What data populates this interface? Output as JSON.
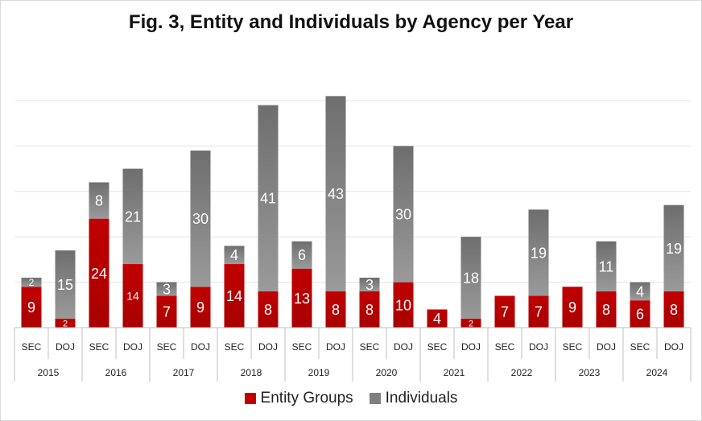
{
  "chart_data": {
    "type": "bar",
    "stacked": true,
    "title": "Fig. 3, Entity and Individuals by Agency per Year",
    "years": [
      "2015",
      "2016",
      "2017",
      "2018",
      "2019",
      "2020",
      "2021",
      "2022",
      "2023",
      "2024"
    ],
    "agencies": [
      "SEC",
      "DOJ"
    ],
    "categories": [
      "2015 SEC",
      "2015 DOJ",
      "2016 SEC",
      "2016 DOJ",
      "2017 SEC",
      "2017 DOJ",
      "2018 SEC",
      "2018 DOJ",
      "2019 SEC",
      "2019 DOJ",
      "2020 SEC",
      "2020 DOJ",
      "2021 SEC",
      "2021 DOJ",
      "2022 SEC",
      "2022 DOJ",
      "2023 SEC",
      "2023 DOJ",
      "2024 SEC",
      "2024 DOJ"
    ],
    "series": [
      {
        "name": "Entity Groups",
        "color": "#c00000",
        "values": [
          9,
          2,
          24,
          14,
          7,
          9,
          14,
          8,
          13,
          8,
          8,
          10,
          4,
          2,
          7,
          7,
          9,
          8,
          6,
          8
        ]
      },
      {
        "name": "Individuals",
        "color": "#808080",
        "values": [
          2,
          15,
          8,
          21,
          3,
          30,
          4,
          41,
          6,
          43,
          3,
          30,
          0,
          18,
          0,
          19,
          0,
          11,
          4,
          19
        ]
      }
    ],
    "ylim": [
      0,
      50
    ],
    "grid": true,
    "legend_position": "bottom"
  }
}
